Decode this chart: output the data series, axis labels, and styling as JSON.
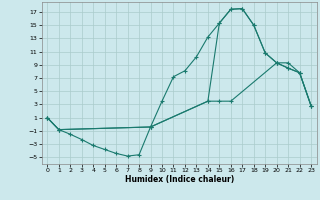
{
  "xlabel": "Humidex (Indice chaleur)",
  "bg_color": "#cce8ec",
  "grid_color": "#aacccc",
  "line_color": "#1a7a6e",
  "xlim": [
    -0.5,
    23.5
  ],
  "ylim": [
    -6,
    18.5
  ],
  "yticks": [
    -5,
    -3,
    -1,
    1,
    3,
    5,
    7,
    9,
    11,
    13,
    15,
    17
  ],
  "xticks": [
    0,
    1,
    2,
    3,
    4,
    5,
    6,
    7,
    8,
    9,
    10,
    11,
    12,
    13,
    14,
    15,
    16,
    17,
    18,
    19,
    20,
    21,
    22,
    23
  ],
  "line2_x": [
    0,
    1,
    2,
    3,
    4,
    5,
    6,
    7,
    8,
    9,
    10,
    11,
    12,
    13,
    14,
    15,
    16,
    17,
    18,
    19,
    20,
    21,
    22,
    23
  ],
  "line2_y": [
    1.0,
    -0.8,
    -1.5,
    -2.3,
    -3.2,
    -3.8,
    -4.4,
    -4.8,
    -4.6,
    -0.4,
    3.5,
    7.2,
    8.1,
    10.2,
    13.2,
    15.3,
    17.4,
    17.5,
    15.0,
    10.8,
    9.3,
    8.5,
    7.8,
    2.8
  ],
  "line3_x": [
    0,
    1,
    9,
    14,
    15,
    16,
    17,
    18,
    19,
    20,
    21,
    22,
    23
  ],
  "line3_y": [
    1.0,
    -0.8,
    -0.4,
    3.5,
    15.3,
    17.4,
    17.5,
    15.0,
    10.8,
    9.3,
    8.5,
    7.8,
    2.8
  ],
  "line4_x": [
    0,
    1,
    9,
    14,
    15,
    16,
    20,
    21,
    22,
    23
  ],
  "line4_y": [
    1.0,
    -0.8,
    -0.4,
    3.5,
    3.5,
    3.5,
    9.3,
    9.3,
    7.8,
    2.8
  ]
}
